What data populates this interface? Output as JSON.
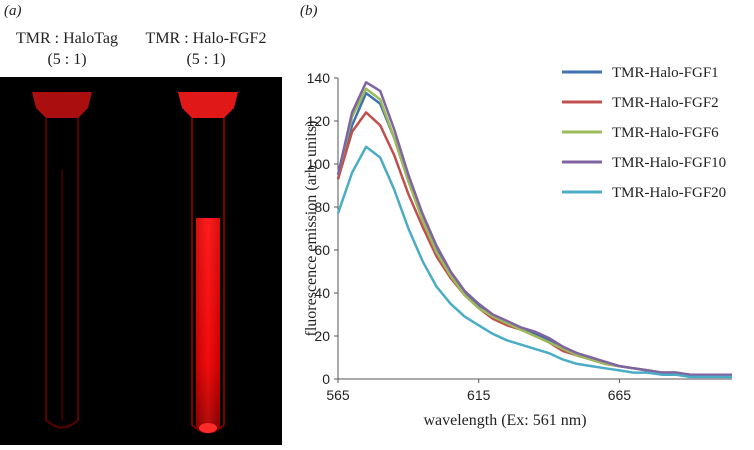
{
  "panel_a": {
    "label": "(a)",
    "columns": [
      {
        "line1": "TMR : HaloTag",
        "line2": "(5 : 1)"
      },
      {
        "line1": "TMR : Halo-FGF2",
        "line2": "(5 : 1)"
      }
    ]
  },
  "chart_data": {
    "type": "line",
    "panel_label": "(b)",
    "x_label": "wavelength (Ex: 561 nm)",
    "y_label": "fluorescence emission (arb. units)",
    "x": [
      565,
      570,
      575,
      580,
      585,
      590,
      595,
      600,
      605,
      610,
      615,
      620,
      625,
      630,
      635,
      640,
      645,
      650,
      655,
      660,
      665,
      670,
      675,
      680,
      685,
      690,
      695,
      700,
      705
    ],
    "series": [
      {
        "name": "TMR-Halo-FGF1",
        "color": "#3f72b0",
        "values": [
          93,
          118,
          133,
          128,
          112,
          92,
          75,
          60,
          49,
          40,
          34,
          29,
          26,
          23,
          21,
          18,
          14,
          11,
          9,
          7,
          6,
          5,
          4,
          3,
          3,
          2,
          2,
          2,
          2
        ]
      },
      {
        "name": "TMR-Halo-FGF2",
        "color": "#c0504d",
        "values": [
          93,
          115,
          124,
          118,
          104,
          86,
          71,
          57,
          47,
          39,
          33,
          28,
          25,
          23,
          20,
          17,
          13,
          11,
          9,
          7,
          6,
          5,
          4,
          3,
          3,
          2,
          2,
          2,
          2
        ]
      },
      {
        "name": "TMR-Halo-FGF6",
        "color": "#9bbb59",
        "values": [
          95,
          122,
          135,
          130,
          112,
          92,
          74,
          59,
          48,
          39,
          33,
          29,
          26,
          23,
          20,
          17,
          14,
          11,
          9,
          7,
          6,
          5,
          4,
          3,
          3,
          2,
          2,
          2,
          2
        ]
      },
      {
        "name": "TMR-Halo-FGF10",
        "color": "#8064a2",
        "values": [
          95,
          124,
          138,
          134,
          116,
          95,
          77,
          62,
          50,
          41,
          35,
          30,
          27,
          24,
          22,
          19,
          15,
          12,
          10,
          8,
          6,
          5,
          4,
          3,
          3,
          2,
          2,
          2,
          2
        ]
      },
      {
        "name": "TMR-Halo-FGF20",
        "color": "#4bacc6",
        "values": [
          77,
          96,
          108,
          103,
          88,
          70,
          55,
          43,
          35,
          29,
          25,
          21,
          18,
          16,
          14,
          12,
          9,
          7,
          6,
          5,
          4,
          3,
          3,
          2,
          2,
          1,
          1,
          1,
          1
        ]
      }
    ],
    "xlim": [
      565,
      705
    ],
    "ylim": [
      0,
      140
    ],
    "xticks": [
      565,
      615,
      665
    ],
    "yticks": [
      0,
      20,
      40,
      60,
      80,
      100,
      120,
      140
    ],
    "grid": false,
    "legend": "right"
  }
}
